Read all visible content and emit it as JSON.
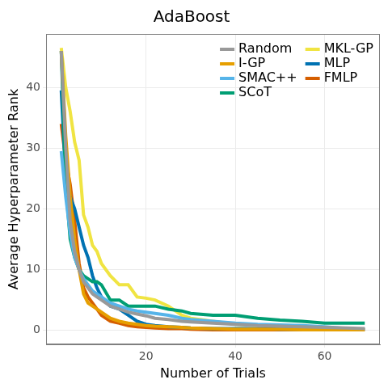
{
  "chart_data": {
    "type": "line",
    "title": "AdaBoost",
    "x_label": "Number of Trials",
    "y_label": "Average Hyperparameter Rank",
    "x": [
      1,
      2,
      3,
      4,
      5,
      6,
      7,
      8,
      9,
      10,
      12,
      14,
      16,
      18,
      20,
      22,
      25,
      28,
      30,
      35,
      40,
      45,
      50,
      55,
      60,
      65,
      69
    ],
    "series": [
      {
        "name": "Random",
        "color": "#999999",
        "values": [
          46,
          30,
          18,
          13,
          10,
          8,
          7,
          6,
          5.5,
          5,
          4,
          3.5,
          3,
          2.7,
          2.4,
          2,
          1.8,
          1.5,
          1.4,
          1.2,
          1,
          0.8,
          0.7,
          0.6,
          0.5,
          0.4,
          0.3
        ]
      },
      {
        "name": "I-GP",
        "color": "#E69F00",
        "values": [
          46,
          32,
          22,
          15,
          10,
          6,
          4.5,
          4,
          3.5,
          3,
          2,
          1.5,
          1.2,
          1,
          0.8,
          0.7,
          0.6,
          0.5,
          0.4,
          0.3,
          0.2,
          0.2,
          0.2,
          0.1,
          0.1,
          0.1,
          0.1
        ]
      },
      {
        "name": "SMAC++",
        "color": "#56B4E9",
        "values": [
          29.5,
          22,
          16,
          12,
          10,
          8.5,
          7.5,
          6.5,
          6,
          5.5,
          4.5,
          4,
          3.5,
          3.2,
          3,
          2.8,
          2.5,
          2,
          1.8,
          1.5,
          1.2,
          1,
          0.9,
          0.8,
          0.6,
          0.3,
          0.2
        ]
      },
      {
        "name": "SCoT",
        "color": "#009E73",
        "values": [
          46,
          24,
          15,
          12,
          10,
          9,
          8.5,
          8,
          8,
          7.5,
          5,
          5,
          4,
          4,
          4,
          4,
          3.5,
          3.2,
          2.8,
          2.5,
          2.5,
          2,
          1.7,
          1.5,
          1.2,
          1.2,
          1.2
        ]
      },
      {
        "name": "MKL-GP",
        "color": "#F0E442",
        "values": [
          46.5,
          40,
          36,
          31,
          28,
          19,
          17,
          14,
          13,
          11,
          9,
          7.5,
          7.5,
          5.5,
          5.3,
          5,
          4,
          2.5,
          2,
          1.5,
          1,
          0.8,
          null,
          null,
          null,
          null,
          null
        ]
      },
      {
        "name": "MLP",
        "color": "#0072B2",
        "values": [
          39.5,
          25,
          22,
          20,
          17,
          14,
          12,
          9,
          7,
          5.5,
          4,
          3.5,
          2.5,
          1.5,
          1,
          0.8,
          0.6,
          0.5,
          0.4,
          0.3,
          0.3,
          0.3,
          0.2,
          0.2,
          0.2,
          0.2,
          0.2
        ]
      },
      {
        "name": "FMLP",
        "color": "#D55E00",
        "values": [
          34,
          28,
          24,
          18,
          11,
          7,
          5.5,
          4.5,
          3.5,
          2.5,
          1.5,
          1.2,
          0.8,
          0.6,
          0.5,
          0.4,
          0.3,
          0.3,
          0.2,
          0.1,
          0.1,
          0.1,
          0.1,
          0.1,
          0.1,
          0.1,
          0.1
        ]
      }
    ],
    "xlim": [
      -2.4,
      72.4
    ],
    "xticks": [
      20,
      40,
      60
    ],
    "ylim": [
      -2.3,
      48.8
    ],
    "yticks": [
      0,
      10,
      20,
      30,
      40
    ],
    "grid": true,
    "legend": "top-right"
  }
}
